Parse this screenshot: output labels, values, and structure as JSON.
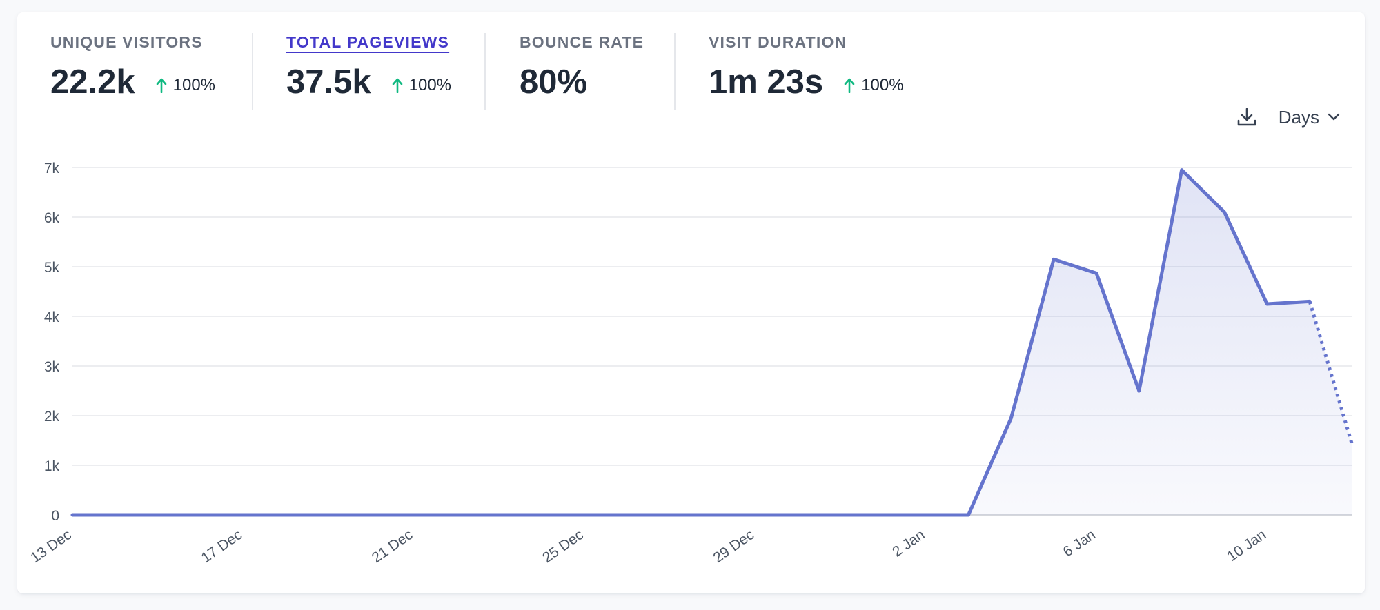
{
  "stats": [
    {
      "label": "UNIQUE VISITORS",
      "value": "22.2k",
      "change": "100%",
      "active": false
    },
    {
      "label": "TOTAL PAGEVIEWS",
      "value": "37.5k",
      "change": "100%",
      "active": true
    },
    {
      "label": "BOUNCE RATE",
      "value": "80%",
      "change": null,
      "active": false
    },
    {
      "label": "VISIT DURATION",
      "value": "1m 23s",
      "change": "100%",
      "active": false
    }
  ],
  "controls": {
    "interval_label": "Days",
    "download_icon": "download-icon",
    "dropdown_icon": "chevron-down-icon"
  },
  "colors": {
    "accent": "#6574cd",
    "active_tab": "#4338ca",
    "change_up": "#10b981",
    "grid": "#e5e7eb"
  },
  "chart_data": {
    "type": "area",
    "title": "",
    "xlabel": "",
    "ylabel": "",
    "ylim": [
      0,
      7000
    ],
    "y_ticks": [
      0,
      1000,
      2000,
      3000,
      4000,
      5000,
      6000,
      7000
    ],
    "y_tick_labels": [
      "0",
      "1k",
      "2k",
      "3k",
      "4k",
      "5k",
      "6k",
      "7k"
    ],
    "x": [
      "13 Dec",
      "14 Dec",
      "15 Dec",
      "16 Dec",
      "17 Dec",
      "18 Dec",
      "19 Dec",
      "20 Dec",
      "21 Dec",
      "22 Dec",
      "23 Dec",
      "24 Dec",
      "25 Dec",
      "26 Dec",
      "27 Dec",
      "28 Dec",
      "29 Dec",
      "30 Dec",
      "31 Dec",
      "1 Jan",
      "2 Jan",
      "3 Jan",
      "4 Jan",
      "5 Jan",
      "6 Jan",
      "7 Jan",
      "8 Jan",
      "9 Jan",
      "10 Jan",
      "11 Jan",
      "12 Jan"
    ],
    "x_tick_labels": [
      "13 Dec",
      "17 Dec",
      "21 Dec",
      "25 Dec",
      "29 Dec",
      "2 Jan",
      "6 Jan",
      "10 Jan"
    ],
    "x_tick_indices": [
      0,
      4,
      8,
      12,
      16,
      20,
      24,
      28
    ],
    "series": [
      {
        "name": "Total pageviews",
        "values": [
          0,
          0,
          0,
          0,
          0,
          0,
          0,
          0,
          0,
          0,
          0,
          0,
          0,
          0,
          0,
          0,
          0,
          0,
          0,
          0,
          0,
          0,
          1950,
          5150,
          4870,
          2500,
          6950,
          6100,
          4250,
          4300,
          1400
        ],
        "partial_from_index": 29
      }
    ]
  }
}
